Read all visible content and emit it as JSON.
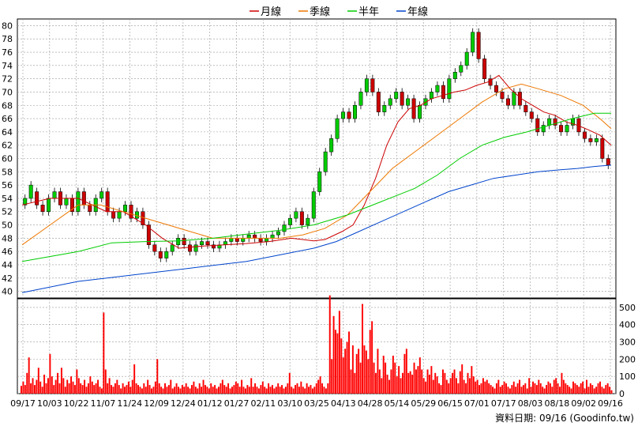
{
  "chart_data": [
    {
      "type": "line",
      "chart_kind": "candlestick with moving averages",
      "legend": [
        {
          "name": "月線",
          "color": "#cc0000"
        },
        {
          "name": "季線",
          "color": "#ee7700"
        },
        {
          "name": "半年",
          "color": "#00cc00"
        },
        {
          "name": "年線",
          "color": "#0044cc"
        }
      ],
      "legend_position": "top-center",
      "grid": true,
      "y_axis_side": "left",
      "ylim": [
        39,
        81
      ],
      "yticks": [
        40,
        42,
        44,
        46,
        48,
        50,
        52,
        54,
        56,
        58,
        60,
        62,
        64,
        66,
        68,
        70,
        72,
        74,
        76,
        78,
        80
      ],
      "up_color": "#00cc00",
      "down_color": "#cc0000",
      "x_tick_labels": [
        "09/17",
        "10/03",
        "10/22",
        "11/07",
        "11/24",
        "12/09",
        "12/24",
        "01/12",
        "01/27",
        "02/11",
        "03/10",
        "03/25",
        "04/13",
        "04/28",
        "05/14",
        "05/29",
        "06/15",
        "07/01",
        "07/17",
        "08/03",
        "08/18",
        "09/02",
        "09/16"
      ],
      "ma_month": [
        [
          0,
          53
        ],
        [
          5,
          54
        ],
        [
          10,
          54
        ],
        [
          15,
          52
        ],
        [
          18,
          52
        ],
        [
          22,
          50
        ],
        [
          25,
          48
        ],
        [
          28,
          46.5
        ],
        [
          32,
          46.8
        ],
        [
          36,
          47
        ],
        [
          40,
          47.2
        ],
        [
          44,
          47.5
        ],
        [
          48,
          48
        ],
        [
          52,
          47.6
        ],
        [
          54,
          47.8
        ],
        [
          57,
          49
        ],
        [
          59,
          50
        ],
        [
          61,
          53
        ],
        [
          63,
          57
        ],
        [
          65,
          62
        ],
        [
          67,
          65.5
        ],
        [
          69,
          67.5
        ],
        [
          71,
          68
        ],
        [
          73,
          69
        ],
        [
          75,
          69.5
        ],
        [
          77,
          70
        ],
        [
          79,
          70.3
        ],
        [
          81,
          71
        ],
        [
          83,
          71.5
        ],
        [
          85,
          72.5
        ],
        [
          87,
          70.5
        ],
        [
          89,
          69
        ],
        [
          91,
          68
        ],
        [
          93,
          67
        ],
        [
          95,
          66.5
        ],
        [
          97,
          65.5
        ],
        [
          99,
          65
        ],
        [
          101,
          64.3
        ],
        [
          103,
          63.5
        ],
        [
          105,
          62
        ]
      ],
      "ma_quarter": [
        [
          0,
          47
        ],
        [
          5,
          50
        ],
        [
          10,
          53
        ],
        [
          14,
          53
        ],
        [
          18,
          52
        ],
        [
          22,
          51
        ],
        [
          26,
          50
        ],
        [
          30,
          49
        ],
        [
          34,
          48
        ],
        [
          38,
          48
        ],
        [
          42,
          48
        ],
        [
          46,
          48
        ],
        [
          50,
          48.5
        ],
        [
          54,
          49.5
        ],
        [
          58,
          51.5
        ],
        [
          62,
          55
        ],
        [
          66,
          58.5
        ],
        [
          70,
          61
        ],
        [
          74,
          63.5
        ],
        [
          78,
          66
        ],
        [
          82,
          68.5
        ],
        [
          86,
          70.5
        ],
        [
          89,
          71.2
        ],
        [
          92,
          70.5
        ],
        [
          96,
          69.5
        ],
        [
          100,
          68
        ],
        [
          103,
          66
        ],
        [
          105,
          64.5
        ]
      ],
      "ma_half": [
        [
          0,
          44.5
        ],
        [
          10,
          46
        ],
        [
          16,
          47.3
        ],
        [
          22,
          47.5
        ],
        [
          28,
          47.6
        ],
        [
          34,
          48
        ],
        [
          40,
          48.6
        ],
        [
          46,
          49.2
        ],
        [
          52,
          50
        ],
        [
          58,
          51.5
        ],
        [
          64,
          53.5
        ],
        [
          70,
          55.5
        ],
        [
          74,
          57.5
        ],
        [
          78,
          60
        ],
        [
          82,
          62
        ],
        [
          86,
          63.2
        ],
        [
          90,
          64
        ],
        [
          94,
          65
        ],
        [
          98,
          66
        ],
        [
          102,
          66.8
        ],
        [
          105,
          66.8
        ]
      ],
      "ma_year": [
        [
          0,
          39.8
        ],
        [
          10,
          41.5
        ],
        [
          20,
          42.5
        ],
        [
          30,
          43.5
        ],
        [
          40,
          44.5
        ],
        [
          46,
          45.5
        ],
        [
          52,
          46.5
        ],
        [
          56,
          47.5
        ],
        [
          60,
          49
        ],
        [
          64,
          50.5
        ],
        [
          68,
          52
        ],
        [
          72,
          53.5
        ],
        [
          76,
          55
        ],
        [
          80,
          56
        ],
        [
          84,
          57
        ],
        [
          88,
          57.5
        ],
        [
          92,
          58
        ],
        [
          96,
          58.3
        ],
        [
          99,
          58.5
        ],
        [
          102,
          58.8
        ],
        [
          105,
          59
        ]
      ],
      "candles": [
        [
          53,
          54
        ],
        [
          54,
          56
        ],
        [
          55,
          53
        ],
        [
          53,
          52
        ],
        [
          52,
          54
        ],
        [
          54,
          55
        ],
        [
          55,
          53
        ],
        [
          53,
          54
        ],
        [
          54,
          52
        ],
        [
          52,
          55
        ],
        [
          55,
          53
        ],
        [
          53,
          52
        ],
        [
          52,
          54
        ],
        [
          54,
          55
        ],
        [
          55,
          52
        ],
        [
          52,
          51
        ],
        [
          51,
          52
        ],
        [
          52,
          53
        ],
        [
          53,
          51
        ],
        [
          51,
          52
        ],
        [
          52,
          50
        ],
        [
          50,
          47
        ],
        [
          47,
          46
        ],
        [
          46,
          45
        ],
        [
          45,
          46
        ],
        [
          46,
          47
        ],
        [
          47,
          48
        ],
        [
          48,
          47
        ],
        [
          47,
          46
        ],
        [
          46,
          47
        ],
        [
          47,
          47.5
        ],
        [
          47.5,
          47
        ],
        [
          47,
          46.5
        ],
        [
          46.5,
          47
        ],
        [
          47,
          47.5
        ],
        [
          47.5,
          48
        ],
        [
          48,
          47.5
        ],
        [
          47.5,
          48
        ],
        [
          48,
          48.5
        ],
        [
          48.5,
          48
        ],
        [
          48,
          47.5
        ],
        [
          47.5,
          48
        ],
        [
          48,
          48.5
        ],
        [
          48.5,
          49
        ],
        [
          49,
          50
        ],
        [
          50,
          51
        ],
        [
          51,
          52
        ],
        [
          52,
          50
        ],
        [
          50,
          51
        ],
        [
          51,
          55
        ],
        [
          55,
          58
        ],
        [
          58,
          61
        ],
        [
          61,
          63
        ],
        [
          63,
          66
        ],
        [
          66,
          67
        ],
        [
          67,
          66
        ],
        [
          66,
          68
        ],
        [
          68,
          70
        ],
        [
          70,
          72
        ],
        [
          72,
          70
        ],
        [
          70,
          67
        ],
        [
          67,
          68
        ],
        [
          68,
          69
        ],
        [
          69,
          70
        ],
        [
          70,
          68
        ],
        [
          68,
          69
        ],
        [
          69,
          66
        ],
        [
          66,
          68
        ],
        [
          68,
          69
        ],
        [
          69,
          70
        ],
        [
          70,
          71
        ],
        [
          71,
          69
        ],
        [
          69,
          72
        ],
        [
          72,
          73
        ],
        [
          73,
          74
        ],
        [
          74,
          76
        ],
        [
          76,
          79
        ],
        [
          79,
          75
        ],
        [
          75,
          72
        ],
        [
          72,
          71
        ],
        [
          71,
          70
        ],
        [
          70,
          69
        ],
        [
          69,
          68
        ],
        [
          68,
          70
        ],
        [
          70,
          68
        ],
        [
          68,
          67
        ],
        [
          67,
          66
        ],
        [
          66,
          64
        ],
        [
          64,
          65
        ],
        [
          65,
          66
        ],
        [
          66,
          65
        ],
        [
          65,
          64
        ],
        [
          64,
          65
        ],
        [
          65,
          66
        ],
        [
          66,
          64
        ],
        [
          64,
          63
        ],
        [
          63,
          62.5
        ],
        [
          62.5,
          63
        ],
        [
          63,
          60
        ],
        [
          60,
          59
        ]
      ],
      "volume_ylim": [
        0,
        550
      ],
      "volume_yticks": [
        0,
        100,
        200,
        300,
        400,
        500
      ],
      "volume_color": "#ff0000",
      "volumes": [
        45,
        70,
        50,
        120,
        210,
        60,
        90,
        50,
        80,
        150,
        70,
        40,
        110,
        60,
        90,
        230,
        100,
        50,
        80,
        120,
        60,
        150,
        90,
        40,
        80,
        60,
        100,
        70,
        50,
        140,
        90,
        60,
        50,
        80,
        40,
        60,
        100,
        70,
        50,
        60,
        80,
        40,
        30,
        470,
        140,
        60,
        90,
        50,
        40,
        60,
        80,
        50,
        30,
        60,
        40,
        50,
        70,
        40,
        80,
        170,
        60,
        50,
        40,
        30,
        60,
        40,
        80,
        50,
        30,
        40,
        70,
        200,
        60,
        40,
        30,
        60,
        40,
        50,
        80,
        30,
        40,
        60,
        40,
        30,
        50,
        40,
        60,
        40,
        30,
        50,
        70,
        40,
        30,
        60,
        40,
        80,
        50,
        40,
        30,
        60,
        40,
        50,
        30,
        40,
        60,
        80,
        50,
        40,
        60,
        30,
        40,
        50,
        70,
        60,
        40,
        80,
        40,
        30,
        50,
        40,
        90,
        40,
        60,
        40,
        30,
        50,
        70,
        40,
        30,
        60,
        40,
        50,
        30,
        40,
        60,
        40,
        50,
        30,
        40,
        60,
        120,
        40,
        30,
        50,
        60,
        40,
        70,
        40,
        30,
        60,
        40,
        50,
        30,
        40,
        60,
        80,
        100,
        60,
        40,
        30,
        60,
        570,
        200,
        450,
        370,
        350,
        480,
        320,
        210,
        260,
        300,
        360,
        140,
        280,
        120,
        230,
        260,
        180,
        520,
        280,
        250,
        200,
        370,
        420,
        180,
        120,
        260,
        140,
        90,
        220,
        180,
        110,
        80,
        140,
        220,
        180,
        100,
        160,
        90,
        120,
        230,
        260,
        120,
        130,
        110,
        180,
        140,
        160,
        210,
        140,
        90,
        70,
        140,
        110,
        160,
        80,
        120,
        100,
        60,
        50,
        140,
        120,
        80,
        60,
        90,
        120,
        140,
        90,
        60,
        130,
        170,
        80,
        60,
        120,
        90,
        160,
        100,
        70,
        80,
        50,
        60,
        90,
        70,
        80,
        60,
        50,
        40,
        30,
        60,
        80,
        40,
        50,
        70,
        60,
        40,
        30,
        50,
        70,
        40,
        60,
        80,
        40,
        50,
        60,
        30,
        90,
        40,
        70,
        60,
        50,
        80,
        60,
        40,
        30,
        50,
        70,
        60,
        40,
        80,
        90,
        60,
        40,
        120,
        80,
        60,
        50,
        40,
        30,
        70,
        60,
        50,
        40,
        60,
        70,
        30,
        80,
        40,
        60,
        50,
        30,
        40,
        60,
        70,
        40,
        30,
        50,
        60,
        40,
        20
      ]
    }
  ],
  "footer": {
    "source": "資料日期: 09/16 (Goodinfo.tw)"
  }
}
